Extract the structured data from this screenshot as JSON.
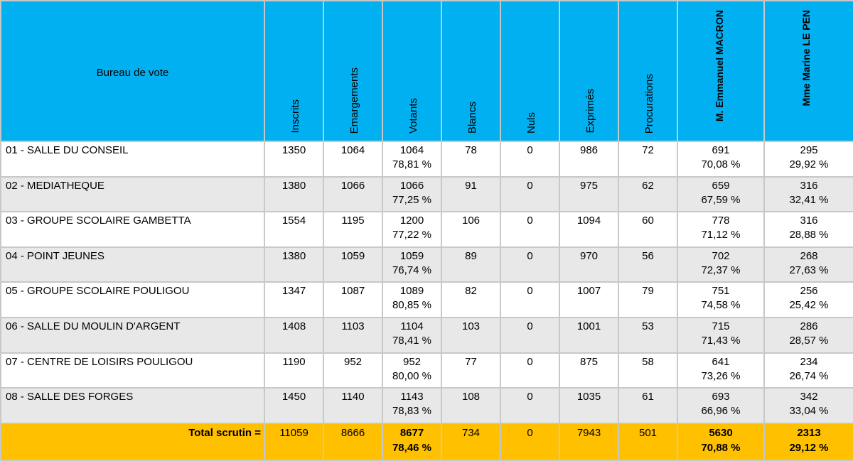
{
  "table": {
    "headers": {
      "bureau": "Bureau de vote",
      "inscrits": "Inscrits",
      "emargements": "Emargements",
      "votants": "Votants",
      "blancs": "Blancs",
      "nuls": "Nuls",
      "exprimes": "Exprimés",
      "procurations": "Procurations",
      "macron": "M. Emmanuel MACRON",
      "lepen": "Mme Marine LE PEN"
    },
    "rows": [
      {
        "bureau": "01 - SALLE DU CONSEIL",
        "inscrits": "1350",
        "emargements": "1064",
        "votants": "1064",
        "votants_pct": "78,81 %",
        "blancs": "78",
        "nuls": "0",
        "exprimes": "986",
        "procurations": "72",
        "macron": "691",
        "macron_pct": "70,08 %",
        "lepen": "295",
        "lepen_pct": "29,92 %"
      },
      {
        "bureau": "02 - MEDIATHEQUE",
        "inscrits": "1380",
        "emargements": "1066",
        "votants": "1066",
        "votants_pct": "77,25 %",
        "blancs": "91",
        "nuls": "0",
        "exprimes": "975",
        "procurations": "62",
        "macron": "659",
        "macron_pct": "67,59 %",
        "lepen": "316",
        "lepen_pct": "32,41 %"
      },
      {
        "bureau": "03 - GROUPE SCOLAIRE GAMBETTA",
        "inscrits": "1554",
        "emargements": "1195",
        "votants": "1200",
        "votants_pct": "77,22 %",
        "blancs": "106",
        "nuls": "0",
        "exprimes": "1094",
        "procurations": "60",
        "macron": "778",
        "macron_pct": "71,12 %",
        "lepen": "316",
        "lepen_pct": "28,88 %"
      },
      {
        "bureau": "04 - POINT JEUNES",
        "inscrits": "1380",
        "emargements": "1059",
        "votants": "1059",
        "votants_pct": "76,74 %",
        "blancs": "89",
        "nuls": "0",
        "exprimes": "970",
        "procurations": "56",
        "macron": "702",
        "macron_pct": "72,37 %",
        "lepen": "268",
        "lepen_pct": "27,63 %"
      },
      {
        "bureau": "05 - GROUPE SCOLAIRE POULIGOU",
        "inscrits": "1347",
        "emargements": "1087",
        "votants": "1089",
        "votants_pct": "80,85 %",
        "blancs": "82",
        "nuls": "0",
        "exprimes": "1007",
        "procurations": "79",
        "macron": "751",
        "macron_pct": "74,58 %",
        "lepen": "256",
        "lepen_pct": "25,42 %"
      },
      {
        "bureau": "06 - SALLE DU MOULIN D'ARGENT",
        "inscrits": "1408",
        "emargements": "1103",
        "votants": "1104",
        "votants_pct": "78,41 %",
        "blancs": "103",
        "nuls": "0",
        "exprimes": "1001",
        "procurations": "53",
        "macron": "715",
        "macron_pct": "71,43 %",
        "lepen": "286",
        "lepen_pct": "28,57 %"
      },
      {
        "bureau": "07 - CENTRE DE LOISIRS POULIGOU",
        "inscrits": "1190",
        "emargements": "952",
        "votants": "952",
        "votants_pct": "80,00 %",
        "blancs": "77",
        "nuls": "0",
        "exprimes": "875",
        "procurations": "58",
        "macron": "641",
        "macron_pct": "73,26 %",
        "lepen": "234",
        "lepen_pct": "26,74 %"
      },
      {
        "bureau": "08 - SALLE DES FORGES",
        "inscrits": "1450",
        "emargements": "1140",
        "votants": "1143",
        "votants_pct": "78,83 %",
        "blancs": "108",
        "nuls": "0",
        "exprimes": "1035",
        "procurations": "61",
        "macron": "693",
        "macron_pct": "66,96 %",
        "lepen": "342",
        "lepen_pct": "33,04 %"
      }
    ],
    "total": {
      "label": "Total scrutin =",
      "inscrits": "11059",
      "emargements": "8666",
      "votants": "8677",
      "votants_pct": "78,46 %",
      "blancs": "734",
      "nuls": "0",
      "exprimes": "7943",
      "procurations": "501",
      "macron": "5630",
      "macron_pct": "70,88 %",
      "lepen": "2313",
      "lepen_pct": "29,12 %"
    },
    "colors": {
      "header_bg": "#00b0f0",
      "total_bg": "#ffc000",
      "alt_row_bg": "#e8e8e8",
      "border": "#c8c8c8"
    }
  }
}
